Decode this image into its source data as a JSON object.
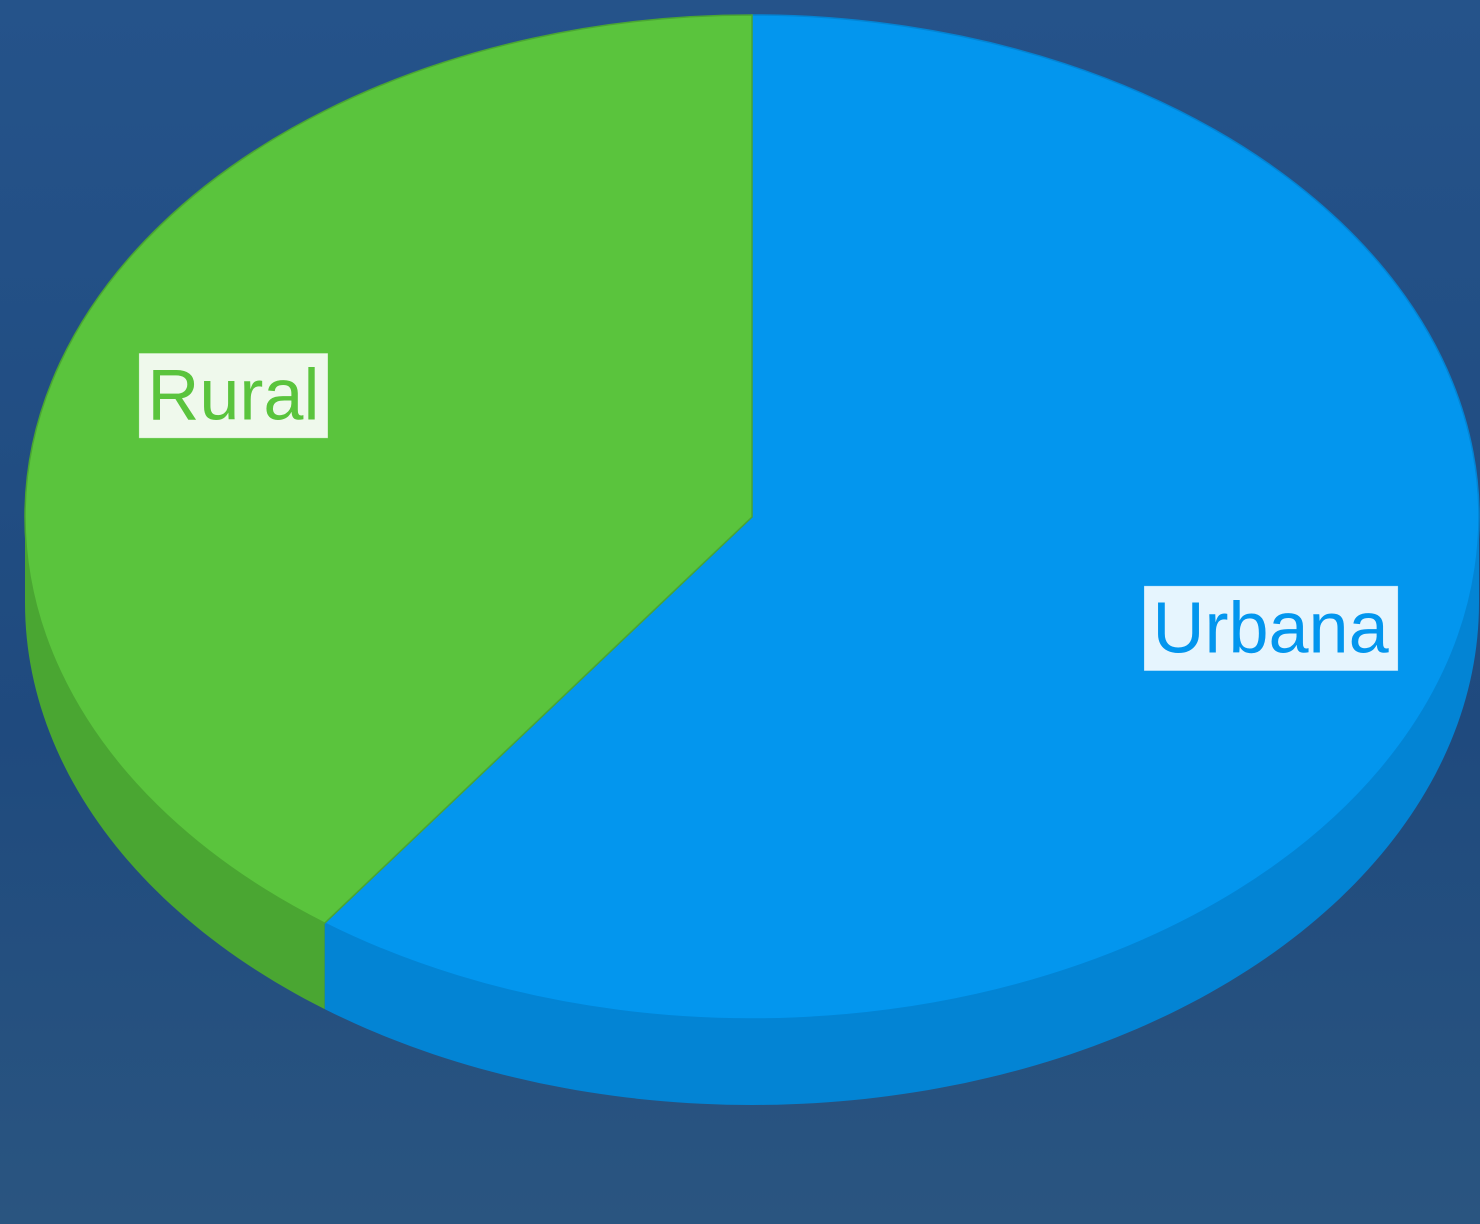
{
  "chart_data": {
    "type": "pie",
    "categories": [
      "Urbana",
      "Rural"
    ],
    "values": [
      60,
      40
    ],
    "colors": [
      "#0396ee",
      "#5ac43d"
    ],
    "side_colors": [
      "#0384d4",
      "#4aa632"
    ]
  }
}
